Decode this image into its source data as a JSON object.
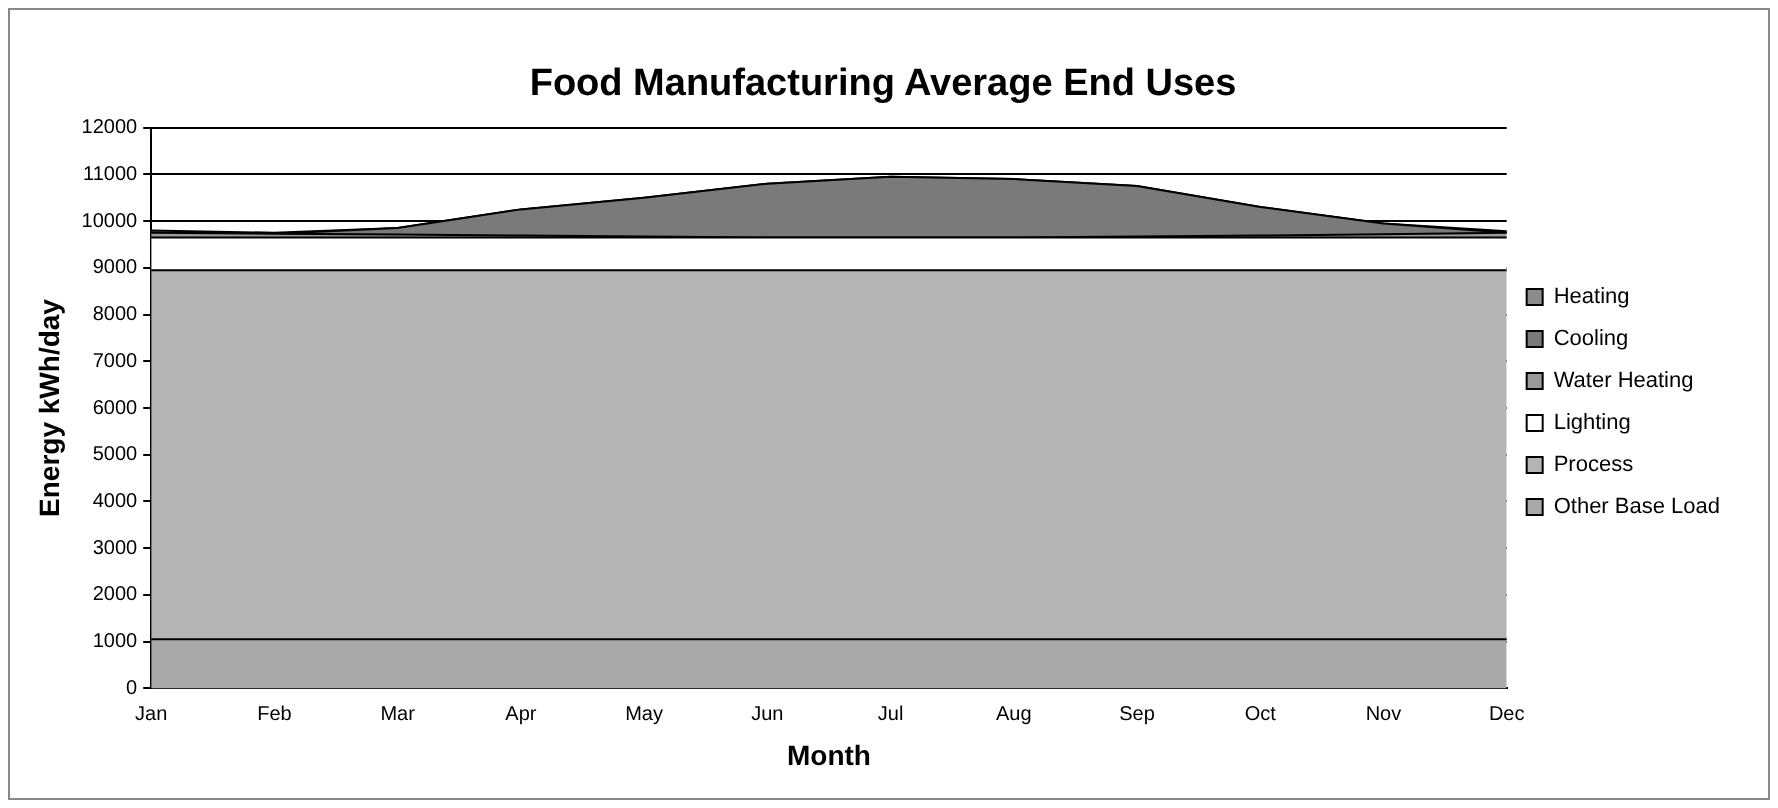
{
  "chart_data": {
    "type": "area",
    "stacked": true,
    "title": "Food Manufacturing Average End Uses",
    "xlabel": "Month",
    "ylabel": "Energy kWh/day",
    "categories": [
      "Jan",
      "Feb",
      "Mar",
      "Apr",
      "May",
      "Jun",
      "Jul",
      "Aug",
      "Sep",
      "Oct",
      "Nov",
      "Dec"
    ],
    "ylim": [
      0,
      12000
    ],
    "yticks": [
      0,
      1000,
      2000,
      3000,
      4000,
      5000,
      6000,
      7000,
      8000,
      9000,
      10000,
      11000,
      12000
    ],
    "grid": "y",
    "legend": "right",
    "series": [
      {
        "name": "Other Base Load",
        "color": "#a9a9a9",
        "values": [
          1050,
          1050,
          1050,
          1050,
          1050,
          1050,
          1050,
          1050,
          1050,
          1050,
          1050,
          1050
        ]
      },
      {
        "name": "Process",
        "color": "#b4b4b4",
        "values": [
          7900,
          7900,
          7900,
          7900,
          7900,
          7900,
          7900,
          7900,
          7900,
          7900,
          7900,
          7900
        ]
      },
      {
        "name": "Lighting",
        "color": "#ffffff",
        "values": [
          700,
          700,
          700,
          700,
          700,
          700,
          700,
          700,
          700,
          700,
          700,
          700
        ]
      },
      {
        "name": "Water Heating",
        "color": "#9a9a9a",
        "values": [
          100,
          80,
          60,
          40,
          20,
          0,
          0,
          0,
          20,
          40,
          70,
          100
        ]
      },
      {
        "name": "Cooling",
        "color": "#7a7a7a",
        "values": [
          0,
          0,
          140,
          560,
          830,
          1150,
          1300,
          1250,
          1080,
          610,
          230,
          0
        ]
      },
      {
        "name": "Heating",
        "color": "#8c8c8c",
        "values": [
          50,
          20,
          0,
          0,
          0,
          0,
          0,
          0,
          0,
          0,
          0,
          30
        ]
      }
    ]
  }
}
